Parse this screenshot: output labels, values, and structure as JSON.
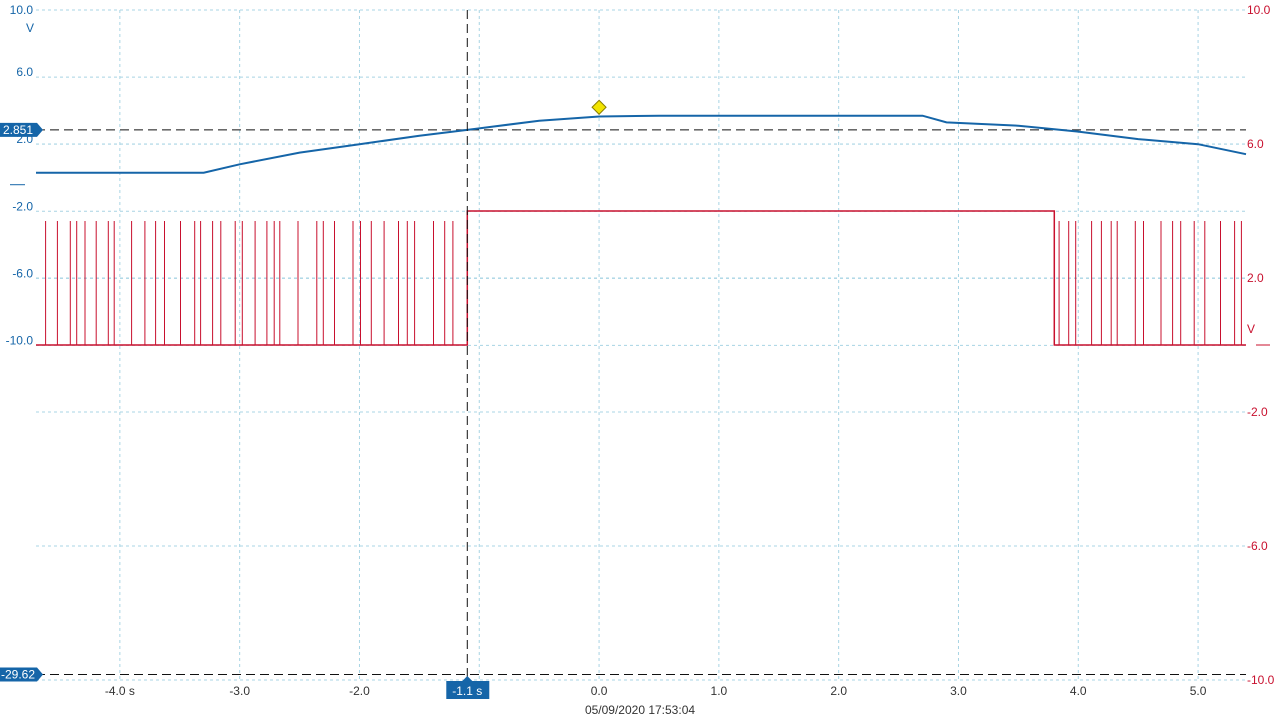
{
  "timestamp": "05/09/2020 17:53:04",
  "chart_data": {
    "type": "line",
    "xlabel": "",
    "xlim": [
      -4.7,
      5.4
    ],
    "x_ticks": [
      {
        "v": -4.0,
        "label": "-4.0 s"
      },
      {
        "v": -3.0,
        "label": "-3.0"
      },
      {
        "v": -2.0,
        "label": "-2.0"
      },
      {
        "v": -1.0,
        "label": ""
      },
      {
        "v": 0.0,
        "label": "0.0"
      },
      {
        "v": 1.0,
        "label": "1.0"
      },
      {
        "v": 2.0,
        "label": "2.0"
      },
      {
        "v": 3.0,
        "label": "3.0"
      },
      {
        "v": 4.0,
        "label": "4.0"
      },
      {
        "v": 5.0,
        "label": "5.0"
      }
    ],
    "grid": true,
    "axes": [
      {
        "unit": "V",
        "side": "left",
        "ylim": [
          -29.95,
          10.0
        ],
        "ticks": [
          {
            "v": 10.0,
            "label": "10.0"
          },
          {
            "v": 6.0,
            "label": "6.0"
          },
          {
            "v": 2.0,
            "label": "2.0"
          },
          {
            "v": -2.0,
            "label": "-2.0"
          },
          {
            "v": -6.0,
            "label": "-6.0"
          },
          {
            "v": -10.0,
            "label": "-10.0"
          }
        ],
        "color": "#1565a8"
      },
      {
        "unit": "V",
        "side": "right",
        "ylim": [
          -10.0,
          10.0
        ],
        "ticks": [
          {
            "v": 10.0,
            "label": "10.0"
          },
          {
            "v": 6.0,
            "label": "6.0"
          },
          {
            "v": 2.0,
            "label": "2.0"
          },
          {
            "v": -2.0,
            "label": "-2.0"
          },
          {
            "v": -6.0,
            "label": "-6.0"
          },
          {
            "v": -10.0,
            "label": "-10.0"
          }
        ],
        "color": "#c8102e"
      }
    ],
    "series": [
      {
        "axis": 0,
        "color": "#1565a8",
        "x": [
          -4.7,
          -3.3,
          -3.0,
          -2.5,
          -2.0,
          -1.5,
          -1.1,
          -0.5,
          0.0,
          0.5,
          1.0,
          2.0,
          2.7,
          2.9,
          3.5,
          4.0,
          4.5,
          5.0,
          5.4
        ],
        "y": [
          0.3,
          0.3,
          0.8,
          1.5,
          2.0,
          2.5,
          2.851,
          3.4,
          3.65,
          3.7,
          3.7,
          3.7,
          3.7,
          3.3,
          3.1,
          2.75,
          2.3,
          2.0,
          1.4
        ]
      },
      {
        "axis": 1,
        "color": "#c8102e",
        "x": [
          -4.7,
          -1.1,
          -1.1,
          3.8,
          3.8,
          5.4
        ],
        "y": [
          0.0,
          0.0,
          4.0,
          4.0,
          0.0,
          0.0
        ],
        "pulse_windows": [
          [
            -4.62,
            -1.13
          ],
          [
            3.84,
            5.37
          ]
        ],
        "pulse_high": 3.7
      }
    ],
    "cursors": {
      "vertical": {
        "x": -1.1,
        "label": "-1.1 s"
      },
      "horizontal": [
        {
          "axis": 0,
          "y": 2.851,
          "label": "2.851"
        },
        {
          "axis": 0,
          "y": -29.62,
          "label": "-29.62"
        }
      ]
    },
    "trigger_marker": {
      "x": 0.0,
      "axis": 0,
      "y": 4.2,
      "color": "#f2e400"
    }
  }
}
